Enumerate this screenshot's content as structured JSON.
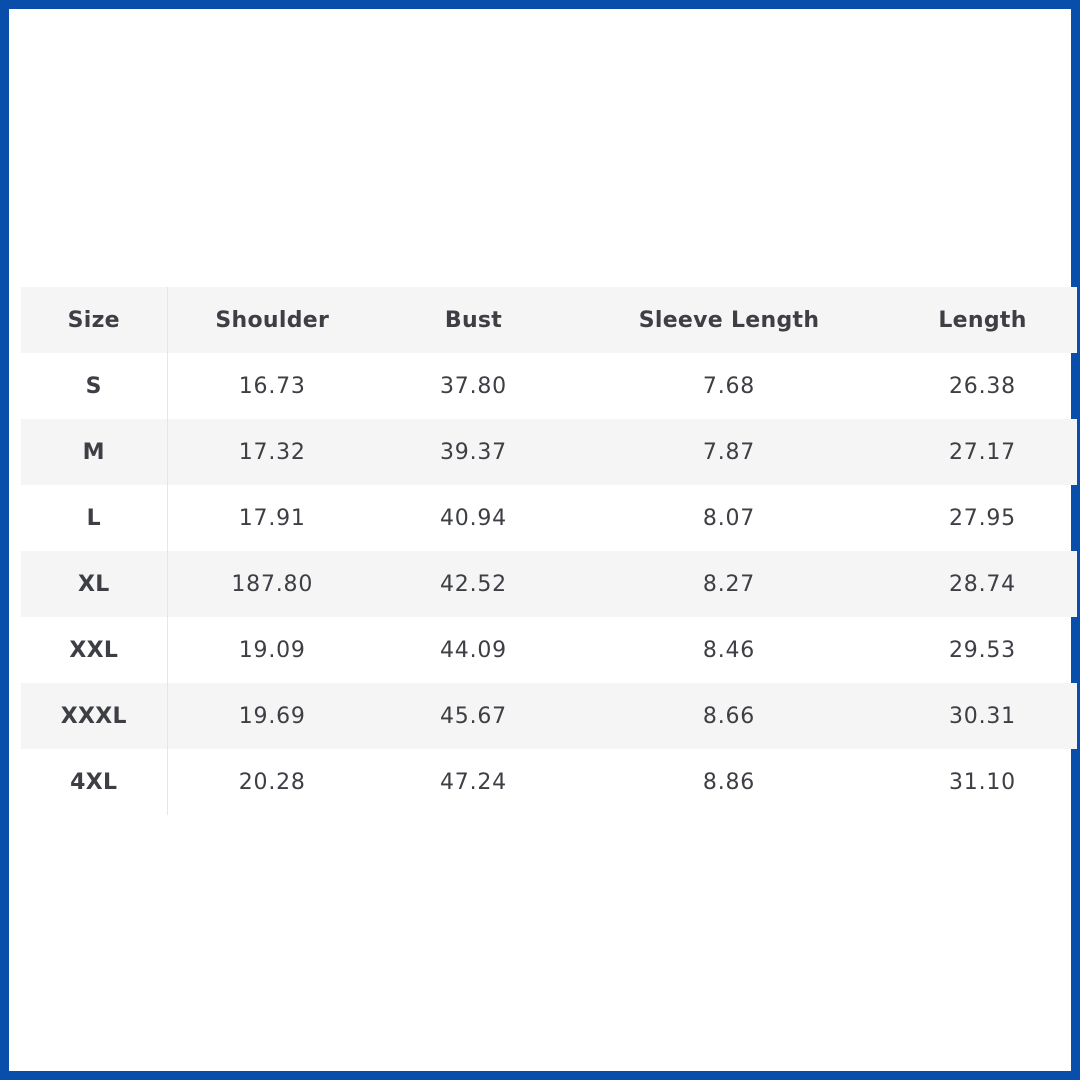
{
  "size_chart": {
    "headers": [
      "Size",
      "Shoulder",
      "Bust",
      "Sleeve Length",
      "Length"
    ],
    "rows": [
      {
        "size": "S",
        "shoulder": "16.73",
        "bust": "37.80",
        "sleeve_length": "7.68",
        "length": "26.38"
      },
      {
        "size": "M",
        "shoulder": "17.32",
        "bust": "39.37",
        "sleeve_length": "7.87",
        "length": "27.17"
      },
      {
        "size": "L",
        "shoulder": "17.91",
        "bust": "40.94",
        "sleeve_length": "8.07",
        "length": "27.95"
      },
      {
        "size": "XL",
        "shoulder": "187.80",
        "bust": "42.52",
        "sleeve_length": "8.27",
        "length": "28.74"
      },
      {
        "size": "XXL",
        "shoulder": "19.09",
        "bust": "44.09",
        "sleeve_length": "8.46",
        "length": "29.53"
      },
      {
        "size": "XXXL",
        "shoulder": "19.69",
        "bust": "45.67",
        "sleeve_length": "8.66",
        "length": "30.31"
      },
      {
        "size": "4XL",
        "shoulder": "20.28",
        "bust": "47.24",
        "sleeve_length": "8.86",
        "length": "31.10"
      }
    ]
  },
  "colors": {
    "frame_border": "#0a4eab",
    "row_shade": "#f5f5f5",
    "text": "#3d3f45"
  }
}
